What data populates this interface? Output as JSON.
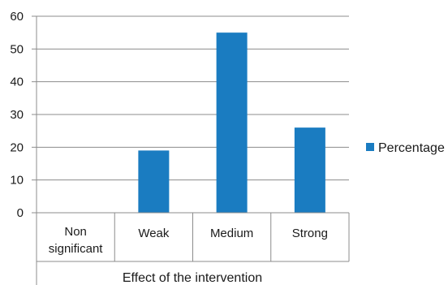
{
  "chart_data": {
    "type": "bar",
    "categories": [
      "Non significant",
      "Weak",
      "Medium",
      "Strong"
    ],
    "category_lines": [
      [
        "Non",
        "significant"
      ],
      [
        "Weak"
      ],
      [
        "Medium"
      ],
      [
        "Strong"
      ]
    ],
    "series": [
      {
        "name": "Percentage",
        "values": [
          0,
          19,
          55,
          26
        ],
        "color": "#1a7cc1"
      }
    ],
    "xlabel": "Effect of the intervention",
    "ylabel": "",
    "ylim": [
      0,
      60
    ],
    "yticks": [
      0,
      10,
      20,
      30,
      40,
      50,
      60
    ],
    "grid": true,
    "legend_position": "right"
  }
}
